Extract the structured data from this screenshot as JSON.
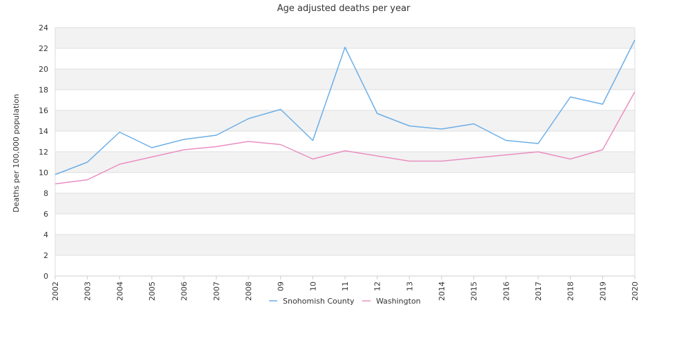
{
  "chart_data": {
    "type": "line",
    "title": "Age adjusted deaths per year",
    "xlabel": "",
    "ylabel": "Deaths per 100,000 population",
    "categories": [
      "2002",
      "2003",
      "2004",
      "2005",
      "2006",
      "2007",
      "2008",
      "09",
      "10",
      "11",
      "12",
      "13",
      "2014",
      "2015",
      "2016",
      "2017",
      "2018",
      "2019",
      "2020"
    ],
    "ylim": [
      0,
      24
    ],
    "yticks": [
      0,
      2,
      4,
      6,
      8,
      10,
      12,
      14,
      16,
      18,
      20,
      22,
      24
    ],
    "grid": true,
    "legend_position": "bottom",
    "series": [
      {
        "name": "Snohomish County",
        "color": "#6aaee8",
        "values": [
          9.8,
          11.0,
          13.9,
          12.4,
          13.2,
          13.6,
          15.2,
          16.1,
          13.1,
          22.1,
          15.7,
          14.5,
          14.2,
          14.7,
          13.1,
          12.8,
          17.3,
          16.6,
          22.8
        ]
      },
      {
        "name": "Washington",
        "color": "#ea8ec0",
        "values": [
          8.9,
          9.3,
          10.8,
          11.5,
          12.2,
          12.5,
          13.0,
          12.7,
          11.3,
          12.1,
          11.6,
          11.1,
          11.1,
          11.4,
          11.7,
          12.0,
          11.3,
          12.2,
          17.8
        ]
      }
    ]
  }
}
